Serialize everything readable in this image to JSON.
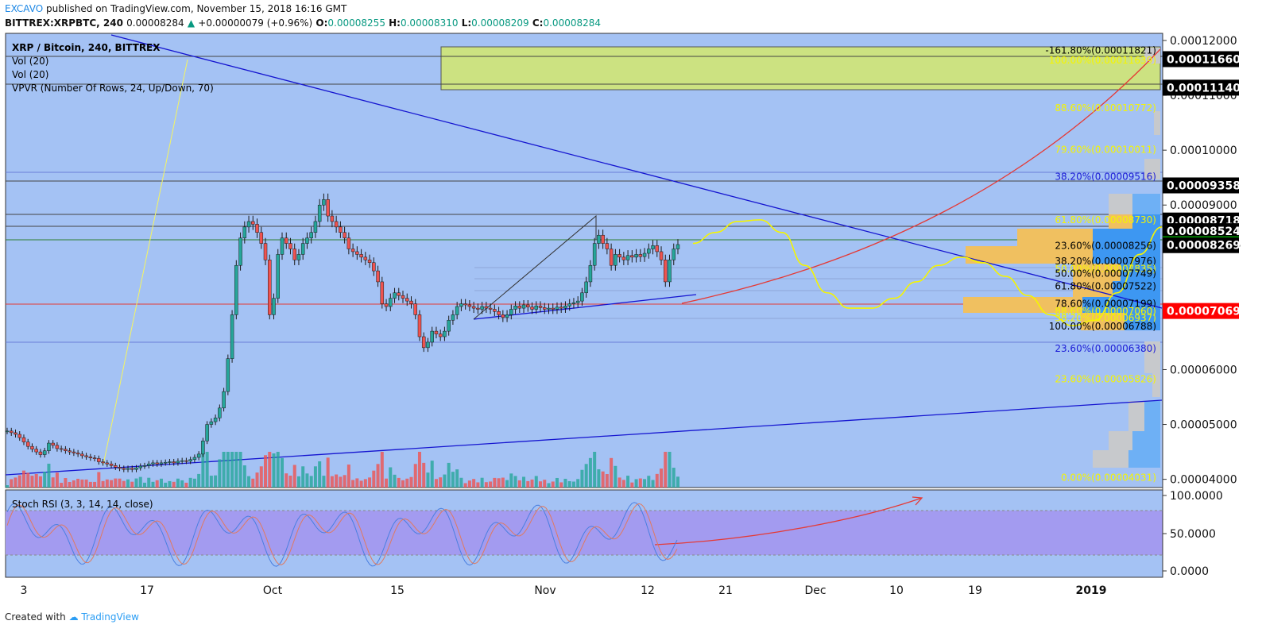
{
  "header": {
    "publisher": "EXCAVO",
    "published_text": "published on TradingView.com, November 15, 2018 16:16 GMT",
    "symbol": "BITTREX:XRPBTC, 240",
    "last": "0.00008284",
    "change": "+0.00000079 (+0.96%)",
    "o_label": "O:",
    "o": "0.00008255",
    "h_label": "H:",
    "h": "0.00008310",
    "l_label": "L:",
    "l": "0.00008209",
    "c_label": "C:",
    "c": "0.00008284"
  },
  "legend": {
    "title": "XRP / Bitcoin, 240, BITTREX",
    "vol1": "Vol (20)",
    "vol2": "Vol (20)",
    "vpvr": "VPVR (Number Of Rows, 24, Up/Down, 70)"
  },
  "stoch": {
    "title": "Stoch RSI (3, 3, 14, 14, close)",
    "ticks": [
      "100.0000",
      "50.0000",
      "0.0000"
    ]
  },
  "footer": {
    "created_with": "Created with",
    "brand": "TradingView"
  },
  "colors": {
    "plot_bg": "#a4c2f4",
    "stoch_band": "#a39bf0",
    "up": "#26a69a",
    "down": "#ef5350",
    "price_tag_green": "#00e600",
    "price_tag_red": "#ff0000"
  },
  "chart_data": {
    "type": "candlestick",
    "title": "XRP / Bitcoin, 240, BITTREX",
    "y_ticks": [
      "0.00012000",
      "0.00011000",
      "0.00010000",
      "0.00009000",
      "0.00006000",
      "0.00005000",
      "0.00004000"
    ],
    "x_ticks": [
      "3",
      "17",
      "Oct",
      "15",
      "Nov",
      "12",
      "21",
      "Dec",
      "10",
      "19",
      "2019"
    ],
    "ylim": [
      3.85e-05,
      0.0001213
    ],
    "grid": false,
    "price_tags": [
      {
        "value": 0.0001166,
        "label": "0.00011660",
        "bg": "#000000",
        "fg": "#ffffff"
      },
      {
        "value": 0.0001114,
        "label": "0.00011140",
        "bg": "#000000",
        "fg": "#ffffff"
      },
      {
        "value": 9.358e-05,
        "label": "0.00009358",
        "bg": "#000000",
        "fg": "#ffffff"
      },
      {
        "value": 8.718e-05,
        "label": "0.00008718",
        "bg": "#000000",
        "fg": "#ffffff"
      },
      {
        "value": 8.524e-05,
        "label": "0.00008524",
        "bg": "#000000",
        "fg": "#ffffff"
      },
      {
        "value": 8.284e-05,
        "label": "0.00008284",
        "bg": "#00e600",
        "fg": "#000000"
      },
      {
        "value": 8.269e-05,
        "label": "0.00008269",
        "bg": "#000000",
        "fg": "#ffffff"
      },
      {
        "value": 7.069e-05,
        "label": "0.00007069",
        "bg": "#ff0000",
        "fg": "#ffffff"
      }
    ],
    "fib_labels": [
      {
        "value": 0.00011821,
        "text": "-161.80%(0.00011821)",
        "color": "#000000"
      },
      {
        "value": 0.00011639,
        "text": "100.00%(0.00011639)",
        "color": "#f5f500"
      },
      {
        "value": 0.00010772,
        "text": "88.60%(0.00010772)",
        "color": "#f5f500"
      },
      {
        "value": 0.00010011,
        "text": "79.60%(0.00010011)",
        "color": "#f5f500"
      },
      {
        "value": 9.516e-05,
        "text": "38.20%(0.00009516)",
        "color": "#1a1ad6"
      },
      {
        "value": 8.73e-05,
        "text": "61.80%(0.00008730)",
        "color": "#f5f500"
      },
      {
        "value": 8.256e-05,
        "text": "23.60%(0.00008256)",
        "color": "#000000"
      },
      {
        "value": 7.976e-05,
        "text": "38.20%(0.00007976)",
        "color": "#000000"
      },
      {
        "value": 7.835e-05,
        "text": "50.00%(0.00007835)",
        "color": "#f5f500"
      },
      {
        "value": 7.749e-05,
        "text": "50.00%(0.00007749)",
        "color": "#000000"
      },
      {
        "value": 7.522e-05,
        "text": "61.80%(0.00007522)",
        "color": "#000000"
      },
      {
        "value": 7.199e-05,
        "text": "78.60%(0.00007199)",
        "color": "#000000"
      },
      {
        "value": 7.06e-05,
        "text": "88.60%(0.00007060)",
        "color": "#f5f500"
      },
      {
        "value": 6.937e-05,
        "text": "38.20%(0.00006937)",
        "color": "#f5f500"
      },
      {
        "value": 6.788e-05,
        "text": "100.00%(0.00006788)",
        "color": "#000000"
      },
      {
        "value": 6.38e-05,
        "text": "23.60%(0.00006380)",
        "color": "#1a1ad6"
      },
      {
        "value": 5.826e-05,
        "text": "23.60%(0.00005826)",
        "color": "#f5f500"
      },
      {
        "value": 4.031e-05,
        "text": "0.00%(0.00004031)",
        "color": "#f5f500"
      }
    ],
    "series": [
      {
        "name": "XRP / Bitcoin",
        "values": [
          4.88e-05,
          4.85e-05,
          4.82e-05,
          4.76e-05,
          4.68e-05,
          4.6e-05,
          4.55e-05,
          4.5e-05,
          4.45e-05,
          4.52e-05,
          4.66e-05,
          4.62e-05,
          4.56e-05,
          4.55e-05,
          4.52e-05,
          4.5e-05,
          4.48e-05,
          4.46e-05,
          4.43e-05,
          4.41e-05,
          4.39e-05,
          4.38e-05,
          4.32e-05,
          4.3e-05,
          4.28e-05,
          4.25e-05,
          4.22e-05,
          4.2e-05,
          4.18e-05,
          4.2e-05,
          4.18e-05,
          4.21e-05,
          4.24e-05,
          4.25e-05,
          4.28e-05,
          4.3e-05,
          4.28e-05,
          4.3e-05,
          4.31e-05,
          4.32e-05,
          4.3e-05,
          4.33e-05,
          4.34e-05,
          4.33e-05,
          4.36e-05,
          4.4e-05,
          4.46e-05,
          4.7e-05,
          5e-05,
          5.05e-05,
          5.12e-05,
          5.3e-05,
          5.6e-05,
          6.2e-05,
          7e-05,
          7.9e-05,
          8.4e-05,
          8.6e-05,
          8.7e-05,
          8.65e-05,
          8.5e-05,
          8.3e-05,
          8e-05,
          7e-05,
          7.3e-05,
          8.1e-05,
          8.4e-05,
          8.3e-05,
          8.2e-05,
          8e-05,
          8.1e-05,
          8.3e-05,
          8.4e-05,
          8.5e-05,
          8.7e-05,
          9e-05,
          9.1e-05,
          8.8e-05,
          8.7e-05,
          8.6e-05,
          8.5e-05,
          8.4e-05,
          8.2e-05,
          8.15e-05,
          8.1e-05,
          8.05e-05,
          8e-05,
          7.95e-05,
          7.8e-05,
          7.6e-05,
          7.2e-05,
          7.15e-05,
          7.3e-05,
          7.4e-05,
          7.35e-05,
          7.3e-05,
          7.25e-05,
          7.2e-05,
          7e-05,
          6.6e-05,
          6.4e-05,
          6.5e-05,
          6.7e-05,
          6.65e-05,
          6.6e-05,
          6.7e-05,
          6.9e-05,
          7e-05,
          7.15e-05,
          7.2e-05,
          7.18e-05,
          7.15e-05,
          7.12e-05,
          7.1e-05,
          7.15e-05,
          7.12e-05,
          7.1e-05,
          7.06e-05,
          7e-05,
          6.95e-05,
          7e-05,
          7.1e-05,
          7.16e-05,
          7.12e-05,
          7.18e-05,
          7.14e-05,
          7.1e-05,
          7.16e-05,
          7.13e-05,
          7.1e-05,
          7.12e-05,
          7.1e-05,
          7.14e-05,
          7.12e-05,
          7.16e-05,
          7.2e-05,
          7.22e-05,
          7.25e-05,
          7.4e-05,
          7.6e-05,
          7.9e-05,
          8.3e-05,
          8.45e-05,
          8.3e-05,
          8.2e-05,
          7.9e-05,
          8.1e-05,
          8.05e-05,
          8e-05,
          8.08e-05,
          8.05e-05,
          8.1e-05,
          8.06e-05,
          8.12e-05,
          8.2e-05,
          8.26e-05,
          8.15e-05,
          8e-05,
          7.6e-05,
          8e-05,
          8.2e-05,
          8.28e-05
        ]
      }
    ],
    "projection_path_values": [
      8.3e-05,
      8.5e-05,
      8.7e-05,
      8.73e-05,
      8.5e-05,
      7.9e-05,
      7.4e-05,
      7.12e-05,
      7.12e-05,
      7.3e-05,
      7.6e-05,
      7.9e-05,
      8.05e-05,
      7.95e-05,
      7.7e-05,
      7.35e-05,
      7e-05,
      6.8e-05,
      6.9e-05,
      7.4e-05,
      8.1e-05,
      8.6e-05
    ]
  }
}
